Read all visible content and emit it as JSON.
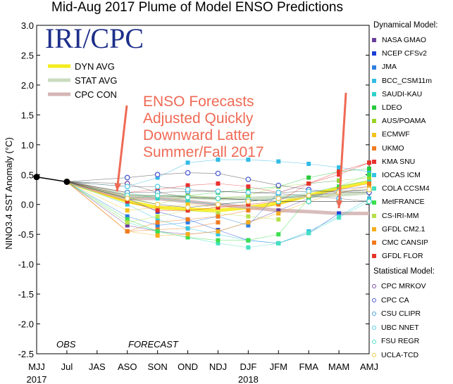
{
  "chart_data": {
    "type": "line",
    "title": "Mid-Aug 2017 Plume of Model ENSO Predictions",
    "ylabel": "NINO3.4 SST Anomaly (°C)",
    "xlabel": "",
    "ylim": [
      -2.5,
      3.0
    ],
    "yticks": [
      "3.0",
      "2.5",
      "2.0",
      "1.5",
      "1.0",
      "0.5",
      "0.0",
      "-0.5",
      "-1.0",
      "-1.5",
      "-2.0",
      "-2.5"
    ],
    "categories": [
      "MJJ",
      "Jul",
      "JAS",
      "ASO",
      "SON",
      "OND",
      "NDJ",
      "DJF",
      "JFM",
      "FMA",
      "MAM",
      "AMJ"
    ],
    "year_labels": [
      {
        "label": "2017",
        "at": "MJJ"
      },
      {
        "label": "2018",
        "at": "DJF"
      }
    ],
    "watermark": "IRI/CPC",
    "region_labels": {
      "obs": "OBS",
      "forecast": "FORECAST"
    },
    "annotation": [
      "ENSO Forecasts",
      "Adjusted Quickly",
      "Downward Latter",
      "Summer/Fall 2017"
    ],
    "annotation_color": "#ef6a55",
    "observed": [
      0.46,
      0.38
    ],
    "averages": [
      {
        "name": "DYN AVG",
        "color": "#f5ec1e",
        "values": [
          null,
          0.38,
          null,
          0.05,
          -0.05,
          -0.08,
          -0.1,
          -0.05,
          0.02,
          0.15,
          0.28,
          0.38
        ]
      },
      {
        "name": "STAT AVG",
        "color": "#c9dcc0",
        "values": [
          null,
          0.38,
          null,
          0.15,
          0.12,
          0.12,
          0.1,
          0.1,
          0.12,
          0.14,
          0.16,
          0.2
        ]
      },
      {
        "name": "CPC CON",
        "color": "#d5b5b5",
        "values": [
          null,
          0.38,
          null,
          0.1,
          0.1,
          0.05,
          0.0,
          -0.05,
          -0.1,
          -0.12,
          -0.15,
          -0.15
        ]
      }
    ],
    "legend_dyn_title": "Dynamical Model:",
    "legend_stat_title": "Statistical Model:",
    "series": [
      {
        "name": "NASA GMAO",
        "group": "dyn",
        "color": "#6a3d9a",
        "values": [
          null,
          0.38,
          null,
          -0.35,
          -0.45,
          -0.5,
          -0.45,
          -0.3,
          -0.1,
          0.1,
          0.25,
          0.3
        ]
      },
      {
        "name": "NCEP CFSv2",
        "group": "dyn",
        "color": "#1b3fd6",
        "values": [
          null,
          0.38,
          null,
          0.1,
          -0.12,
          -0.25,
          -0.43,
          -0.6,
          -0.65,
          -0.48,
          -0.15,
          null
        ]
      },
      {
        "name": "JMA",
        "group": "dyn",
        "color": "#2f7fe0",
        "values": [
          null,
          0.38,
          null,
          -0.2,
          -0.35,
          -0.3,
          -0.2,
          -0.35,
          0.2,
          0.35,
          0.4,
          null
        ]
      },
      {
        "name": "BCC_CSM11m",
        "group": "dyn",
        "color": "#33bce6",
        "values": [
          null,
          0.38,
          null,
          0.3,
          0.45,
          0.7,
          0.75,
          0.75,
          0.72,
          0.68,
          0.62,
          0.55
        ]
      },
      {
        "name": "SAUDI-KAU",
        "group": "dyn",
        "color": "#2fd1c8",
        "values": [
          null,
          0.38,
          null,
          0.2,
          0.1,
          0.05,
          0.0,
          0.05,
          0.1,
          0.2,
          0.3,
          0.4
        ]
      },
      {
        "name": "LDEO",
        "group": "dyn",
        "color": "#28c83c",
        "values": [
          null,
          0.38,
          null,
          0.1,
          0.15,
          0.15,
          0.2,
          0.25,
          0.3,
          0.45,
          0.55,
          0.6
        ]
      },
      {
        "name": "AUS/POAMA",
        "group": "dyn",
        "color": "#9ad42a",
        "values": [
          null,
          0.38,
          null,
          0.12,
          0.0,
          0.15,
          0.1,
          0.15,
          0.3,
          0.35,
          0.4,
          0.45
        ]
      },
      {
        "name": "ECMWF",
        "group": "dyn",
        "color": "#f5c21a",
        "values": [
          null,
          0.38,
          null,
          -0.1,
          -0.05,
          0.0,
          -0.05,
          0.0,
          null,
          null,
          null,
          null
        ]
      },
      {
        "name": "UKMO",
        "group": "dyn",
        "color": "#f07b20",
        "values": [
          null,
          0.38,
          null,
          -0.45,
          -0.42,
          -0.4,
          -0.3,
          null,
          null,
          null,
          null,
          null
        ]
      },
      {
        "name": "KMA SNU",
        "group": "dyn",
        "color": "#e8312e",
        "values": [
          null,
          0.38,
          null,
          0.2,
          0.25,
          0.32,
          0.35,
          0.3,
          0.2,
          0.35,
          0.5,
          0.7
        ]
      },
      {
        "name": "IOCAS ICM",
        "group": "dyn",
        "color": "#33c4e3",
        "values": [
          null,
          0.38,
          null,
          0.0,
          -0.25,
          -0.4,
          -0.5,
          -0.6,
          -0.65,
          -0.45,
          -0.2,
          0.1
        ]
      },
      {
        "name": "COLA CCSM4",
        "group": "dyn",
        "color": "#44e0c0",
        "values": [
          null,
          0.38,
          null,
          -0.3,
          -0.45,
          -0.55,
          -0.65,
          -0.72,
          -0.65,
          -0.48,
          -0.22,
          0.05
        ]
      },
      {
        "name": "MetFRANCE",
        "group": "dyn",
        "color": "#3be04e",
        "values": [
          null,
          0.38,
          null,
          -0.25,
          -0.45,
          -0.55,
          -0.6,
          -0.6,
          -0.5,
          0.1,
          0.3,
          0.5
        ]
      },
      {
        "name": "CS-IRI-MM",
        "group": "dyn",
        "color": "#b6e04a",
        "values": [
          null,
          0.38,
          null,
          -0.3,
          -0.2,
          -0.1,
          -0.15,
          -0.2,
          -0.25,
          null,
          null,
          null
        ]
      },
      {
        "name": "GFDL CM2.1",
        "group": "dyn",
        "color": "#f5ad1c",
        "values": [
          null,
          0.38,
          null,
          -0.45,
          -0.52,
          -0.5,
          -0.45,
          -0.3,
          -0.15,
          0.05,
          0.2,
          0.3
        ]
      },
      {
        "name": "CMC CANSIP",
        "group": "dyn",
        "color": "#f07a1c",
        "values": [
          null,
          0.38,
          null,
          -0.45,
          -0.3,
          -0.25,
          -0.2,
          -0.1,
          0.0,
          0.15,
          0.25,
          0.35
        ]
      },
      {
        "name": "GFDL FLOR",
        "group": "dyn",
        "color": "#e5332a",
        "values": [
          null,
          0.38,
          null,
          0.05,
          -0.1,
          -0.1,
          -0.05,
          0.0,
          0.05,
          0.35,
          0.55,
          0.7
        ]
      },
      {
        "name": "CPC MRKOV",
        "group": "stat",
        "color": "#7b4da8",
        "values": [
          null,
          0.38,
          null,
          0.35,
          0.2,
          0.12,
          0.1,
          0.08,
          0.05,
          0.05,
          0.05,
          0.05
        ]
      },
      {
        "name": "CPC CA",
        "group": "stat",
        "color": "#4a5ad6",
        "values": [
          null,
          0.38,
          null,
          0.45,
          0.5,
          0.53,
          0.52,
          0.42,
          0.32,
          0.25,
          0.2,
          0.2
        ]
      },
      {
        "name": "CSU CLIPR",
        "group": "stat",
        "color": "#4aa0e0",
        "values": [
          null,
          0.38,
          null,
          0.2,
          0.2,
          0.22,
          0.22,
          0.2,
          0.18,
          0.15,
          0.1,
          0.05
        ]
      },
      {
        "name": "UBC NNET",
        "group": "stat",
        "color": "#56cfe8",
        "values": [
          null,
          0.38,
          null,
          0.3,
          0.3,
          0.25,
          0.22,
          0.2,
          0.2,
          0.22,
          0.22,
          0.25
        ]
      },
      {
        "name": "FSU REGR",
        "group": "stat",
        "color": "#4fe0c8",
        "values": [
          null,
          0.38,
          null,
          0.15,
          0.15,
          0.12,
          0.1,
          0.08,
          0.05,
          0.05,
          0.05,
          0.05
        ]
      },
      {
        "name": "UCLA-TCD",
        "group": "stat",
        "color": "#f0c850",
        "values": [
          null,
          0.38,
          null,
          0.1,
          0.0,
          -0.05,
          0.0,
          0.05,
          0.1,
          0.15,
          0.2,
          0.25
        ]
      }
    ]
  }
}
